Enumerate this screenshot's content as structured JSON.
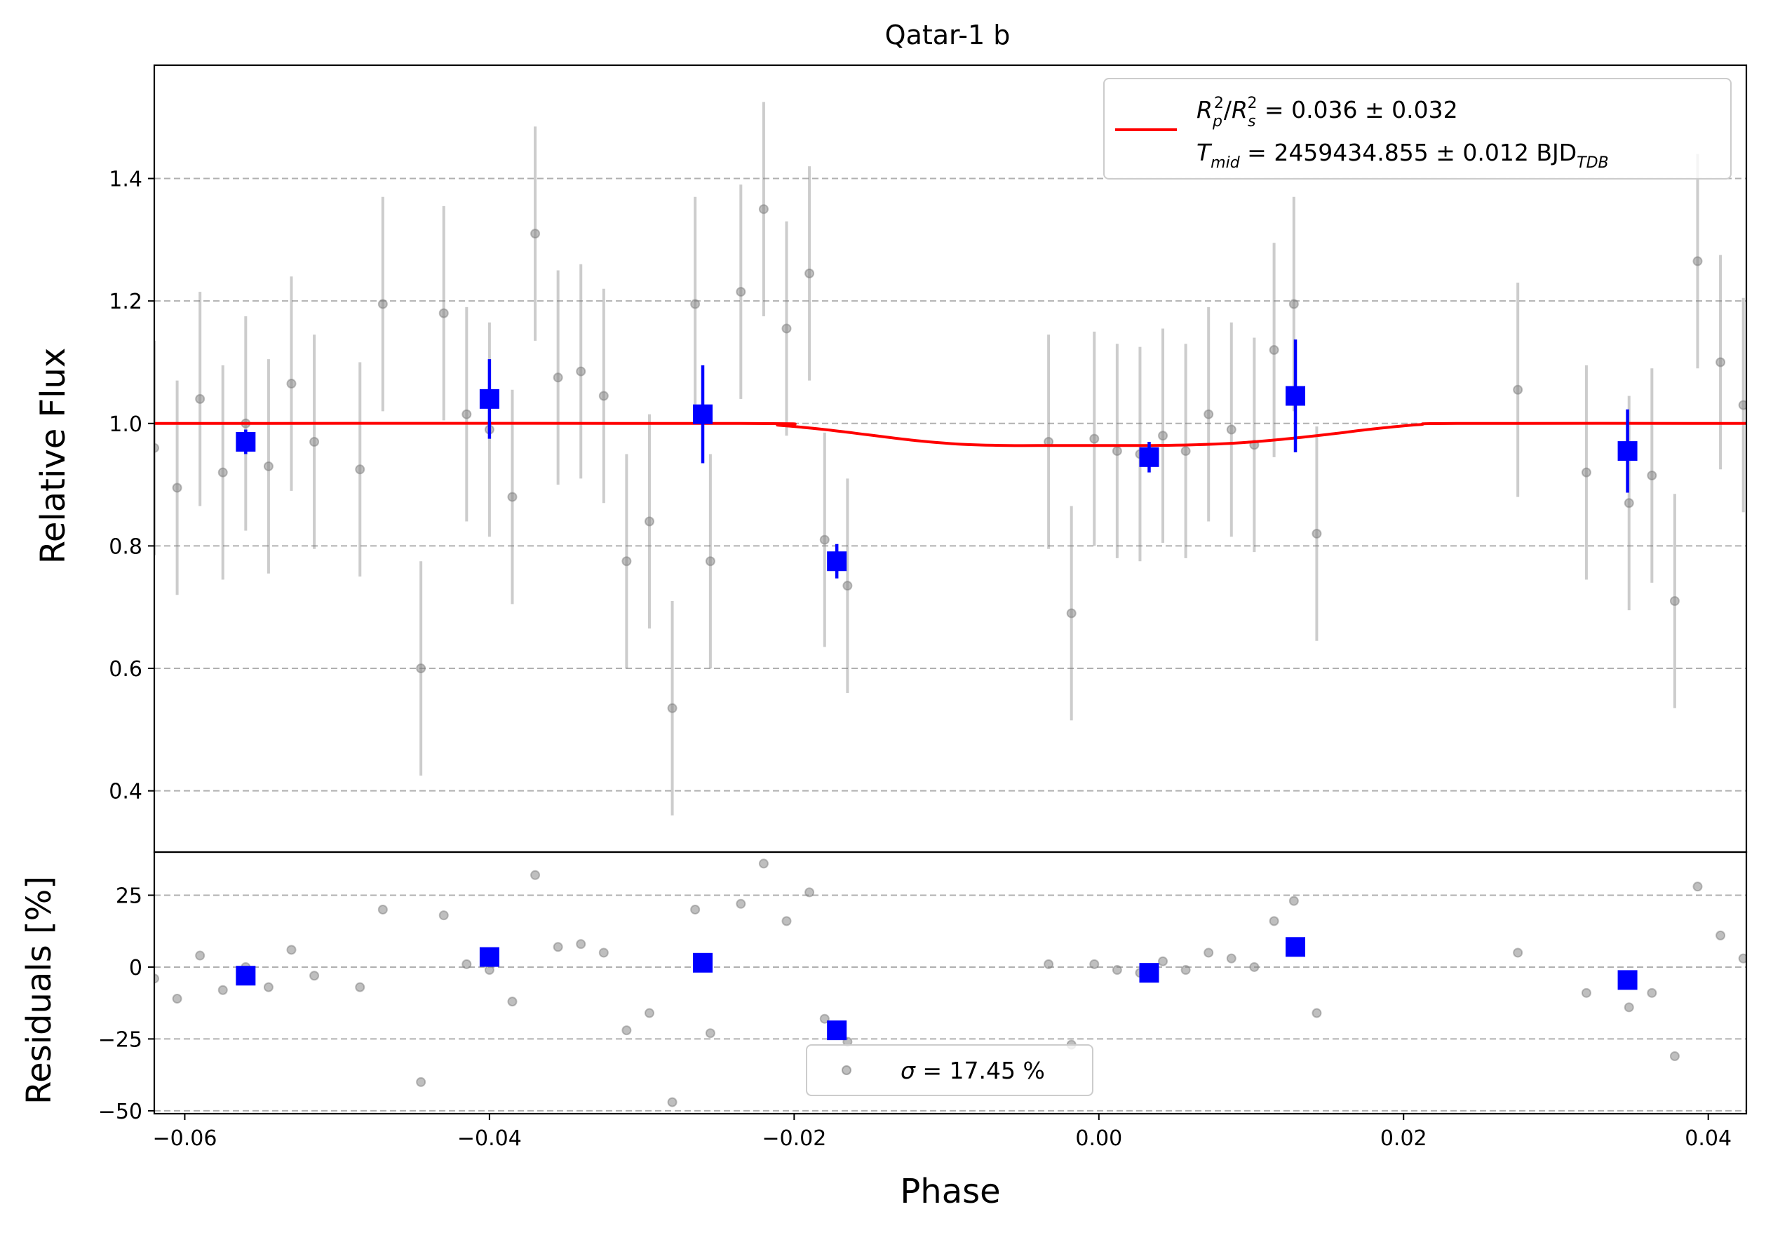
{
  "chart_data": [
    {
      "type": "scatter",
      "panel": "main",
      "title": "Qatar-1 b",
      "xlabel": "",
      "ylabel": "Relative Flux",
      "xlim": [
        -0.062,
        0.0425
      ],
      "ylim": [
        0.3,
        1.585
      ],
      "yticks": [
        0.4,
        0.6,
        0.8,
        1.0,
        1.2,
        1.4
      ],
      "ytick_labels": [
        "0.4",
        "0.6",
        "0.8",
        "1.0",
        "1.2",
        "1.4"
      ],
      "grid": "horizontal dashed",
      "legend_position": "top-right",
      "legend": {
        "line1": {
          "base": "R",
          "sub1": "p",
          "sup1": "2",
          "slash": "/",
          "base2": "R",
          "sub2": "s",
          "sup2": "2",
          "rest": " = 0.036 ± 0.032"
        },
        "line2": {
          "base": "T",
          "sub": "mid",
          "rest": " = 2459434.855 ± 0.012 BJD",
          "sub2": "TDB"
        }
      },
      "model": {
        "color": "#ff0000",
        "x": [
          -0.062,
          -0.0235,
          -0.021,
          -0.018,
          -0.015,
          -0.012,
          -0.009,
          -0.006,
          -0.003,
          0.0,
          0.003,
          0.006,
          0.009,
          0.012,
          0.015,
          0.018,
          0.021,
          0.0235,
          0.0425
        ],
        "y": [
          1.0,
          1.0,
          0.997,
          0.99,
          0.981,
          0.972,
          0.966,
          0.964,
          0.964,
          0.964,
          0.964,
          0.965,
          0.968,
          0.974,
          0.982,
          0.991,
          0.998,
          1.0,
          1.0
        ]
      },
      "raw_points": {
        "color": "#808080",
        "x": [
          -0.062,
          -0.0605,
          -0.059,
          -0.0575,
          -0.056,
          -0.0545,
          -0.053,
          -0.0515,
          -0.0485,
          -0.047,
          -0.0445,
          -0.043,
          -0.0415,
          -0.04,
          -0.0385,
          -0.037,
          -0.0355,
          -0.034,
          -0.0325,
          -0.031,
          -0.0295,
          -0.028,
          -0.0265,
          -0.0255,
          -0.0235,
          -0.022,
          -0.0205,
          -0.019,
          -0.018,
          -0.0165,
          -0.0033,
          -0.0018,
          -0.0003,
          0.0012,
          0.0027,
          0.0042,
          0.0057,
          0.0072,
          0.0087,
          0.0102,
          0.0115,
          0.0128,
          0.0143,
          0.0275,
          0.032,
          0.0348,
          0.0363,
          0.0378,
          0.0393,
          0.0408,
          0.0423
        ],
        "y": [
          0.96,
          0.895,
          1.04,
          0.92,
          1.0,
          0.93,
          1.065,
          0.97,
          0.925,
          1.195,
          0.6,
          1.18,
          1.015,
          0.99,
          0.88,
          1.31,
          1.075,
          1.085,
          1.045,
          0.775,
          0.84,
          0.535,
          1.195,
          0.775,
          1.215,
          1.35,
          1.155,
          1.245,
          0.81,
          0.735,
          0.97,
          0.69,
          0.975,
          0.955,
          0.95,
          0.98,
          0.955,
          1.015,
          0.99,
          0.965,
          1.12,
          1.195,
          0.82,
          1.055,
          0.92,
          0.87,
          0.915,
          0.71,
          1.265,
          1.1,
          1.03
        ],
        "err": [
          0.175,
          0.175,
          0.175,
          0.175,
          0.175,
          0.175,
          0.175,
          0.175,
          0.175,
          0.175,
          0.175,
          0.175,
          0.175,
          0.175,
          0.175,
          0.175,
          0.175,
          0.175,
          0.175,
          0.175,
          0.175,
          0.175,
          0.175,
          0.175,
          0.175,
          0.175,
          0.175,
          0.175,
          0.175,
          0.175,
          0.175,
          0.175,
          0.175,
          0.175,
          0.175,
          0.175,
          0.175,
          0.175,
          0.175,
          0.175,
          0.175,
          0.175,
          0.175,
          0.175,
          0.175,
          0.175,
          0.175,
          0.175,
          0.175,
          0.175,
          0.175
        ]
      },
      "binned_points": {
        "color": "#0000ff",
        "x": [
          -0.056,
          -0.04,
          -0.026,
          -0.0172,
          0.0033,
          0.0129,
          0.0347
        ],
        "y": [
          0.97,
          1.04,
          1.015,
          0.775,
          0.945,
          1.045,
          0.955
        ],
        "err": [
          0.02,
          0.065,
          0.08,
          0.028,
          0.025,
          0.092,
          0.068
        ]
      }
    },
    {
      "type": "scatter",
      "panel": "residuals",
      "xlabel": "Phase",
      "ylabel": "Residuals [%]",
      "xlim": [
        -0.062,
        0.0425
      ],
      "ylim": [
        -51,
        40
      ],
      "xticks": [
        -0.06,
        -0.04,
        -0.02,
        0.0,
        0.02,
        0.04
      ],
      "xtick_labels": [
        "−0.06",
        "−0.04",
        "−0.02",
        "0.00",
        "0.02",
        "0.04"
      ],
      "yticks": [
        -50,
        -25,
        0,
        25
      ],
      "ytick_labels": [
        "−50",
        "−25",
        "0",
        "25"
      ],
      "grid": "horizontal dashed",
      "legend_position": "bottom-center",
      "legend": {
        "sigma_symbol": "σ",
        "rest": " = 17.45 %"
      },
      "raw_points": {
        "color": "#808080",
        "x": [
          -0.062,
          -0.0605,
          -0.059,
          -0.0575,
          -0.056,
          -0.0545,
          -0.053,
          -0.0515,
          -0.0485,
          -0.047,
          -0.0445,
          -0.043,
          -0.0415,
          -0.04,
          -0.0385,
          -0.037,
          -0.0355,
          -0.034,
          -0.0325,
          -0.031,
          -0.0295,
          -0.028,
          -0.0265,
          -0.0255,
          -0.0235,
          -0.022,
          -0.0205,
          -0.019,
          -0.018,
          -0.0165,
          -0.0033,
          -0.0018,
          -0.0003,
          0.0012,
          0.0027,
          0.0042,
          0.0057,
          0.0072,
          0.0087,
          0.0102,
          0.0115,
          0.0128,
          0.0143,
          0.0275,
          0.032,
          0.0348,
          0.0363,
          0.0378,
          0.0393,
          0.0408,
          0.0423
        ],
        "y": [
          -4,
          -11,
          4,
          -8,
          0,
          -7,
          6,
          -3,
          -7,
          20,
          -40,
          18,
          1,
          -1,
          -12,
          32,
          7,
          8,
          5,
          -22,
          -16,
          -47,
          20,
          -23,
          22,
          36,
          16,
          26,
          -18,
          -26,
          1,
          -27,
          1,
          -1,
          -2,
          2,
          -1,
          5,
          3,
          0,
          16,
          23,
          -16,
          5,
          -9,
          -14,
          -9,
          -31,
          28,
          11,
          3
        ]
      },
      "binned_points": {
        "color": "#0000ff",
        "x": [
          -0.056,
          -0.04,
          -0.026,
          -0.0172,
          0.0033,
          0.0129,
          0.0347
        ],
        "y": [
          -3,
          3.5,
          1.5,
          -22,
          -2,
          7,
          -4.5
        ]
      }
    }
  ]
}
